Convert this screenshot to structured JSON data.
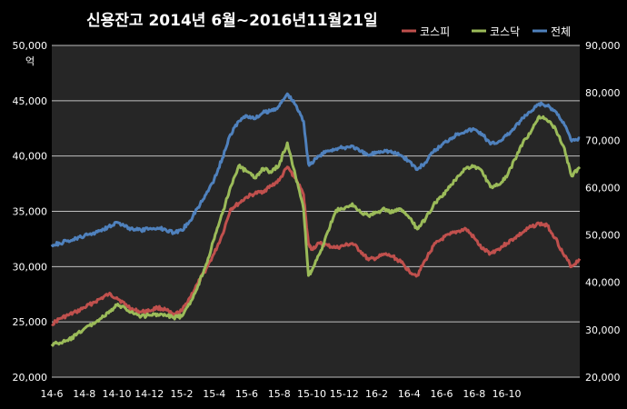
{
  "chart_data": {
    "type": "line",
    "title": "신용잔고 2014년 6월~2016년11월21일",
    "left_unit": "억",
    "x_tick_labels": [
      "14-6",
      "14-8",
      "14-10",
      "14-12",
      "15-2",
      "15-4",
      "15-6",
      "15-8",
      "15-10",
      "15-12",
      "16-2",
      "16-4",
      "16-6",
      "16-8",
      "16-10"
    ],
    "left_axis": {
      "ticks": [
        "20,000",
        "25,000",
        "30,000",
        "35,000",
        "40,000",
        "45,000",
        "50,000"
      ],
      "ylim": [
        20000,
        50000
      ]
    },
    "right_axis": {
      "ticks": [
        "20,000",
        "30,000",
        "40,000",
        "50,000",
        "60,000",
        "70,000",
        "80,000",
        "90,000"
      ],
      "ylim": [
        20000,
        90000
      ]
    },
    "grid": "horizontal",
    "legend_position": "top-right",
    "series": [
      {
        "name": "코스피",
        "color": "#c0504d",
        "axis": "left",
        "points": [
          [
            0,
            24800
          ],
          [
            0.5,
            25300
          ],
          [
            1,
            25600
          ],
          [
            1.5,
            25900
          ],
          [
            2,
            26300
          ],
          [
            2.5,
            26700
          ],
          [
            3,
            27100
          ],
          [
            3.5,
            27500
          ],
          [
            4,
            27200
          ],
          [
            4.5,
            26600
          ],
          [
            5,
            26100
          ],
          [
            5.5,
            25900
          ],
          [
            6,
            26000
          ],
          [
            6.5,
            26300
          ],
          [
            7,
            26100
          ],
          [
            7.5,
            25600
          ],
          [
            8,
            26000
          ],
          [
            8.5,
            27200
          ],
          [
            9,
            28500
          ],
          [
            9.5,
            29800
          ],
          [
            10,
            31200
          ],
          [
            10.5,
            32900
          ],
          [
            11,
            35200
          ],
          [
            11.5,
            35700
          ],
          [
            12,
            36300
          ],
          [
            12.5,
            36600
          ],
          [
            13,
            36800
          ],
          [
            13.5,
            37300
          ],
          [
            14,
            37800
          ],
          [
            14.5,
            39000
          ],
          [
            15,
            38000
          ],
          [
            15.5,
            36500
          ],
          [
            15.8,
            32000
          ],
          [
            16,
            31600
          ],
          [
            16.5,
            32100
          ],
          [
            17,
            31900
          ],
          [
            17.5,
            31700
          ],
          [
            18,
            31900
          ],
          [
            18.5,
            32100
          ],
          [
            19,
            31400
          ],
          [
            19.5,
            30600
          ],
          [
            20,
            30800
          ],
          [
            20.5,
            31100
          ],
          [
            21,
            30900
          ],
          [
            21.5,
            30400
          ],
          [
            22,
            29600
          ],
          [
            22.5,
            29200
          ],
          [
            23,
            30600
          ],
          [
            23.5,
            31900
          ],
          [
            24,
            32500
          ],
          [
            24.5,
            32900
          ],
          [
            25,
            33200
          ],
          [
            25.5,
            33400
          ],
          [
            26,
            32600
          ],
          [
            26.5,
            31600
          ],
          [
            27,
            31200
          ],
          [
            27.5,
            31600
          ],
          [
            28,
            32100
          ],
          [
            28.5,
            32600
          ],
          [
            29,
            33100
          ],
          [
            29.5,
            33600
          ],
          [
            30,
            33900
          ],
          [
            30.5,
            33700
          ],
          [
            31,
            32600
          ],
          [
            31.5,
            31100
          ],
          [
            32,
            30000
          ],
          [
            32.5,
            30700
          ]
        ]
      },
      {
        "name": "코스닥",
        "color": "#9bbb59",
        "axis": "left",
        "points": [
          [
            0,
            23000
          ],
          [
            0.5,
            23100
          ],
          [
            1,
            23300
          ],
          [
            1.5,
            23800
          ],
          [
            2,
            24400
          ],
          [
            2.5,
            24800
          ],
          [
            3,
            25300
          ],
          [
            3.5,
            25800
          ],
          [
            4,
            26500
          ],
          [
            4.5,
            26300
          ],
          [
            5,
            25800
          ],
          [
            5.5,
            25500
          ],
          [
            6,
            25600
          ],
          [
            6.5,
            25700
          ],
          [
            7,
            25600
          ],
          [
            7.5,
            25400
          ],
          [
            8,
            25500
          ],
          [
            8.5,
            26600
          ],
          [
            9,
            28300
          ],
          [
            9.5,
            30200
          ],
          [
            10,
            32500
          ],
          [
            10.5,
            34800
          ],
          [
            11,
            37200
          ],
          [
            11.5,
            39100
          ],
          [
            12,
            38600
          ],
          [
            12.5,
            38000
          ],
          [
            13,
            38900
          ],
          [
            13.5,
            38500
          ],
          [
            14,
            39200
          ],
          [
            14.5,
            41200
          ],
          [
            15,
            38200
          ],
          [
            15.5,
            35200
          ],
          [
            15.8,
            29200
          ],
          [
            16,
            29600
          ],
          [
            16.5,
            31200
          ],
          [
            17,
            33200
          ],
          [
            17.5,
            35100
          ],
          [
            18,
            35200
          ],
          [
            18.5,
            35700
          ],
          [
            19,
            34900
          ],
          [
            19.5,
            34600
          ],
          [
            20,
            34900
          ],
          [
            20.5,
            35200
          ],
          [
            21,
            34900
          ],
          [
            21.5,
            35200
          ],
          [
            22,
            34400
          ],
          [
            22.5,
            33400
          ],
          [
            23,
            34300
          ],
          [
            23.5,
            35600
          ],
          [
            24,
            36300
          ],
          [
            24.5,
            37200
          ],
          [
            25,
            38200
          ],
          [
            25.5,
            38900
          ],
          [
            26,
            39100
          ],
          [
            26.5,
            38600
          ],
          [
            27,
            37200
          ],
          [
            27.5,
            37400
          ],
          [
            28,
            38100
          ],
          [
            28.5,
            39700
          ],
          [
            29,
            41200
          ],
          [
            29.5,
            42200
          ],
          [
            30,
            43600
          ],
          [
            30.5,
            43200
          ],
          [
            31,
            42500
          ],
          [
            31.5,
            40900
          ],
          [
            32,
            38200
          ],
          [
            32.5,
            39000
          ]
        ]
      },
      {
        "name": "전체",
        "color": "#4f81bd",
        "axis": "right",
        "points": [
          [
            0,
            48000
          ],
          [
            0.5,
            48200
          ],
          [
            1,
            48800
          ],
          [
            1.5,
            49200
          ],
          [
            2,
            49800
          ],
          [
            2.5,
            50300
          ],
          [
            3,
            51000
          ],
          [
            3.5,
            51800
          ],
          [
            4,
            52700
          ],
          [
            4.5,
            51800
          ],
          [
            5,
            51200
          ],
          [
            5.5,
            51000
          ],
          [
            6,
            51300
          ],
          [
            6.5,
            51500
          ],
          [
            7,
            51200
          ],
          [
            7.5,
            50500
          ],
          [
            8,
            51000
          ],
          [
            8.5,
            53000
          ],
          [
            9,
            55800
          ],
          [
            9.5,
            58600
          ],
          [
            10,
            61800
          ],
          [
            10.5,
            66200
          ],
          [
            11,
            71200
          ],
          [
            11.5,
            74000
          ],
          [
            12,
            75200
          ],
          [
            12.5,
            74500
          ],
          [
            13,
            75800
          ],
          [
            13.5,
            76200
          ],
          [
            14,
            77200
          ],
          [
            14.5,
            79800
          ],
          [
            15,
            77500
          ],
          [
            15.5,
            74000
          ],
          [
            15.8,
            65000
          ],
          [
            16,
            65200
          ],
          [
            16.5,
            66800
          ],
          [
            17,
            67800
          ],
          [
            17.5,
            68200
          ],
          [
            18,
            68400
          ],
          [
            18.5,
            68800
          ],
          [
            19,
            67600
          ],
          [
            19.5,
            66800
          ],
          [
            20,
            67500
          ],
          [
            20.5,
            67900
          ],
          [
            21,
            67400
          ],
          [
            21.5,
            66800
          ],
          [
            22,
            65600
          ],
          [
            22.5,
            63800
          ],
          [
            23,
            65300
          ],
          [
            23.5,
            67600
          ],
          [
            24,
            69000
          ],
          [
            24.5,
            70300
          ],
          [
            25,
            71400
          ],
          [
            25.5,
            72000
          ],
          [
            26,
            72300
          ],
          [
            26.5,
            71300
          ],
          [
            27,
            69200
          ],
          [
            27.5,
            69700
          ],
          [
            28,
            71000
          ],
          [
            28.5,
            72600
          ],
          [
            29,
            74700
          ],
          [
            29.5,
            76000
          ],
          [
            30,
            77700
          ],
          [
            30.5,
            77200
          ],
          [
            31,
            76100
          ],
          [
            31.5,
            73800
          ],
          [
            32,
            69800
          ],
          [
            32.5,
            70400
          ]
        ]
      }
    ]
  }
}
